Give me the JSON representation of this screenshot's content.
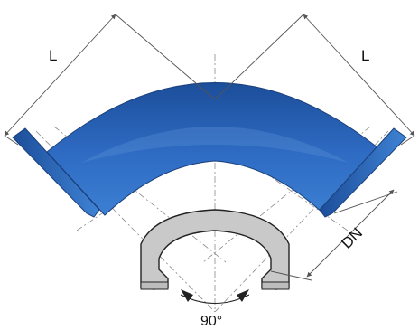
{
  "labels": {
    "length_left": "L",
    "length_right": "L",
    "diameter": "DN",
    "angle": "90°"
  },
  "colors": {
    "body_fill": "#2f6cc4",
    "body_dark": "#1c4e9a",
    "body_light": "#5b93d8",
    "section_fill": "#c9c9c9",
    "outline": "#222222",
    "dimension_line": "#555555"
  }
}
